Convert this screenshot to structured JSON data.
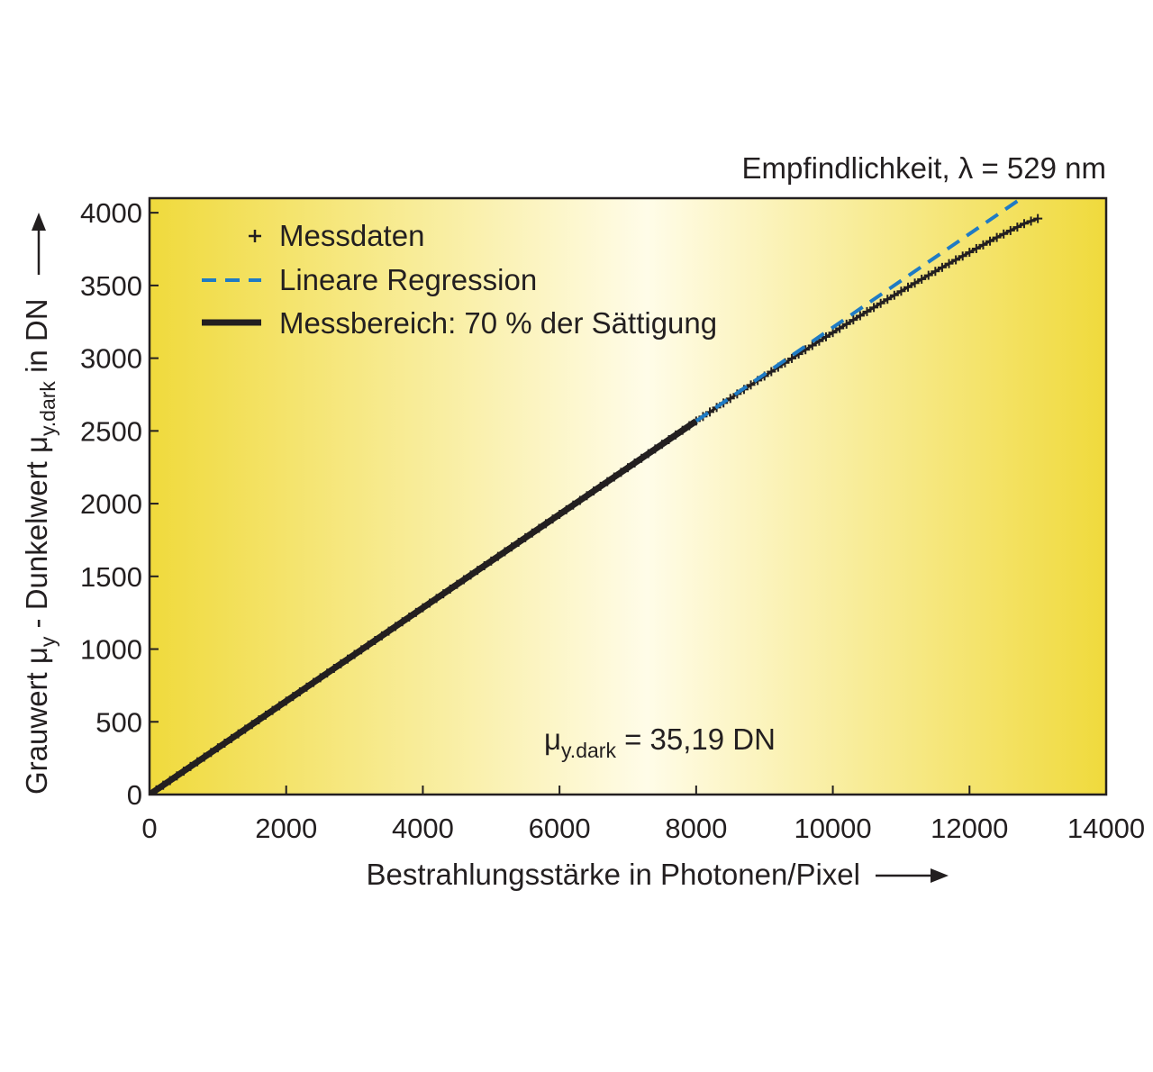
{
  "chart_data": {
    "type": "line",
    "title": "Empfindlichkeit, λ = 529 nm",
    "xlabel": "Bestrahlungsstärke in Photonen/Pixel",
    "ylabel_parts": {
      "t1": "Grauwert μ",
      "s1": "y",
      "t2": " - Dunkelwert μ",
      "s2": "y.dark",
      "t3": " in DN"
    },
    "xlim": [
      0,
      14000
    ],
    "ylim": [
      0,
      4100
    ],
    "xticks": [
      0,
      2000,
      4000,
      6000,
      8000,
      10000,
      12000,
      14000
    ],
    "yticks": [
      0,
      500,
      1000,
      1500,
      2000,
      2500,
      3000,
      3500,
      4000
    ],
    "grid": false,
    "legend_position": "top-left",
    "legend": {
      "messdaten": "Messdaten",
      "regression": "Lineare Regression",
      "messbereich": "Messbereich: 70 % der Sättigung"
    },
    "annotation": {
      "prefix": "μ",
      "sub": "y.dark",
      "suffix": " = 35,19 DN"
    },
    "colors": {
      "background_edge": "#f0da3c",
      "background_center": "#fffce8",
      "data": "#231f20",
      "regression": "#1f7bc4"
    },
    "series": [
      {
        "name": "Messdaten",
        "style": "plus-markers",
        "x": [
          0,
          200,
          400,
          600,
          800,
          1000,
          1400,
          1800,
          2200,
          2600,
          3000,
          3400,
          3800,
          4200,
          4600,
          5000,
          5400,
          5800,
          6200,
          6600,
          7000,
          7400,
          7800,
          8000,
          8400,
          8800,
          9200,
          9600,
          10000,
          10400,
          10800,
          11200,
          11600,
          12000,
          12400,
          12800,
          13000
        ],
        "y": [
          0,
          64,
          128,
          193,
          257,
          321,
          449,
          578,
          706,
          835,
          963,
          1091,
          1220,
          1348,
          1477,
          1605,
          1734,
          1862,
          1990,
          2119,
          2247,
          2376,
          2504,
          2568,
          2692,
          2816,
          2938,
          3058,
          3176,
          3292,
          3405,
          3516,
          3624,
          3728,
          3830,
          3925,
          3960
        ]
      },
      {
        "name": "Lineare Regression",
        "style": "dashed",
        "x": [
          8000,
          12700
        ],
        "y": [
          2568,
          4080
        ]
      },
      {
        "name": "Messbereich: 70 % der Sättigung",
        "style": "thick-solid",
        "x": [
          0,
          8000
        ],
        "y": [
          0,
          2568
        ]
      }
    ]
  }
}
